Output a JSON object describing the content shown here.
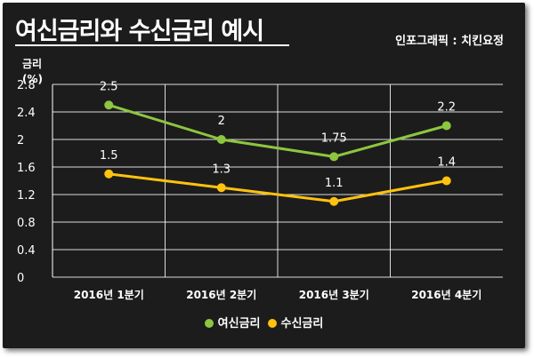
{
  "title": "여신금리와 수신금리 예시",
  "credit": "인포그래픽 : 치킨요정",
  "colors": {
    "background": "#1c1c1c",
    "grid": "#ffffff",
    "text": "#ffffff"
  },
  "chart_data": {
    "type": "line",
    "title": "여신금리와 수신금리 예시",
    "xlabel": "",
    "ylabel": "금리",
    "yunit": "(%)",
    "categories": [
      "2016년 1분기",
      "2016년 2분기",
      "2016년 3분기",
      "2016년 4분기"
    ],
    "ylim": [
      0,
      2.8
    ],
    "yticks": [
      "0",
      "0.4",
      "0.8",
      "1.2",
      "1.6",
      "2",
      "2.4",
      "2.8"
    ],
    "grid": true,
    "legend_position": "bottom-center",
    "series": [
      {
        "name": "여신금리",
        "color": "#8dc63f",
        "values": [
          2.5,
          2,
          1.75,
          2.2
        ],
        "labels": [
          "2.5",
          "2",
          "1.75",
          "2.2"
        ]
      },
      {
        "name": "수신금리",
        "color": "#ffc20e",
        "values": [
          1.5,
          1.3,
          1.1,
          1.4
        ],
        "labels": [
          "1.5",
          "1.3",
          "1.1",
          "1.4"
        ]
      }
    ]
  }
}
